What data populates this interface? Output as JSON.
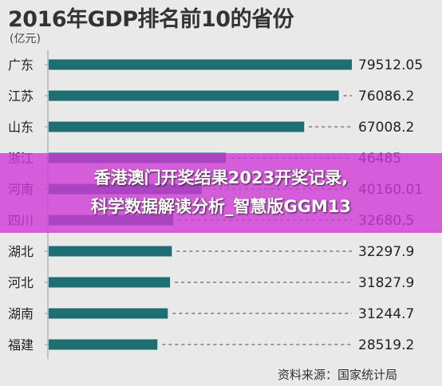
{
  "chart_data": {
    "type": "bar",
    "orientation": "horizontal",
    "title": "2016年GDP排名前10的省份",
    "unit_label": "(亿元)",
    "categories": [
      "广东",
      "江苏",
      "山东",
      "浙江",
      "河南",
      "四川",
      "湖北",
      "河北",
      "湖南",
      "福建"
    ],
    "values": [
      79512.05,
      76086.2,
      67008.2,
      46485,
      40160.01,
      32680.5,
      32297.9,
      31827.9,
      31244.7,
      28519.2
    ],
    "value_labels": [
      "79512.05",
      "76086.2",
      "67008.2",
      "46485",
      "40160.01",
      "32680.5",
      "32297.9",
      "31827.9",
      "31244.7",
      "28519.2"
    ],
    "xlim": [
      0,
      79512.05
    ],
    "colors": {
      "bar": "#1e6f73",
      "axis": "#999999",
      "leader": "#666666"
    },
    "source": "资料来源：国家统计局"
  },
  "overlay": {
    "line1": "香港澳门开奖结果2023开奖记录,",
    "line2": "科学数据解读分析_智慧版GGM13"
  }
}
